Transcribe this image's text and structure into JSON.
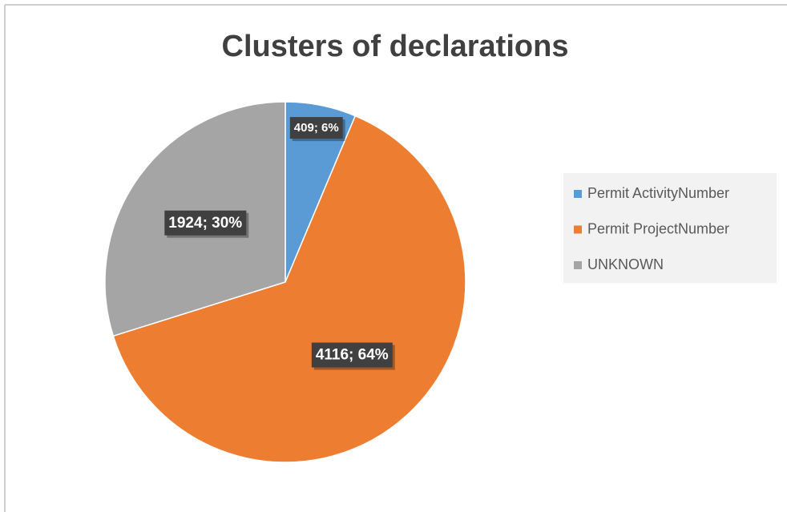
{
  "chart_data": {
    "type": "pie",
    "title": "Clusters of declarations",
    "categories": [
      "Permit ActivityNumber",
      "Permit ProjectNumber",
      "UNKNOWN"
    ],
    "values": [
      409,
      4116,
      1924
    ],
    "value_labels": [
      "409; 6%",
      "4116; 64%",
      "1924; 30%"
    ],
    "colors": [
      "#5b9bd5",
      "#ed7d31",
      "#a5a5a5"
    ],
    "legend": "right"
  }
}
